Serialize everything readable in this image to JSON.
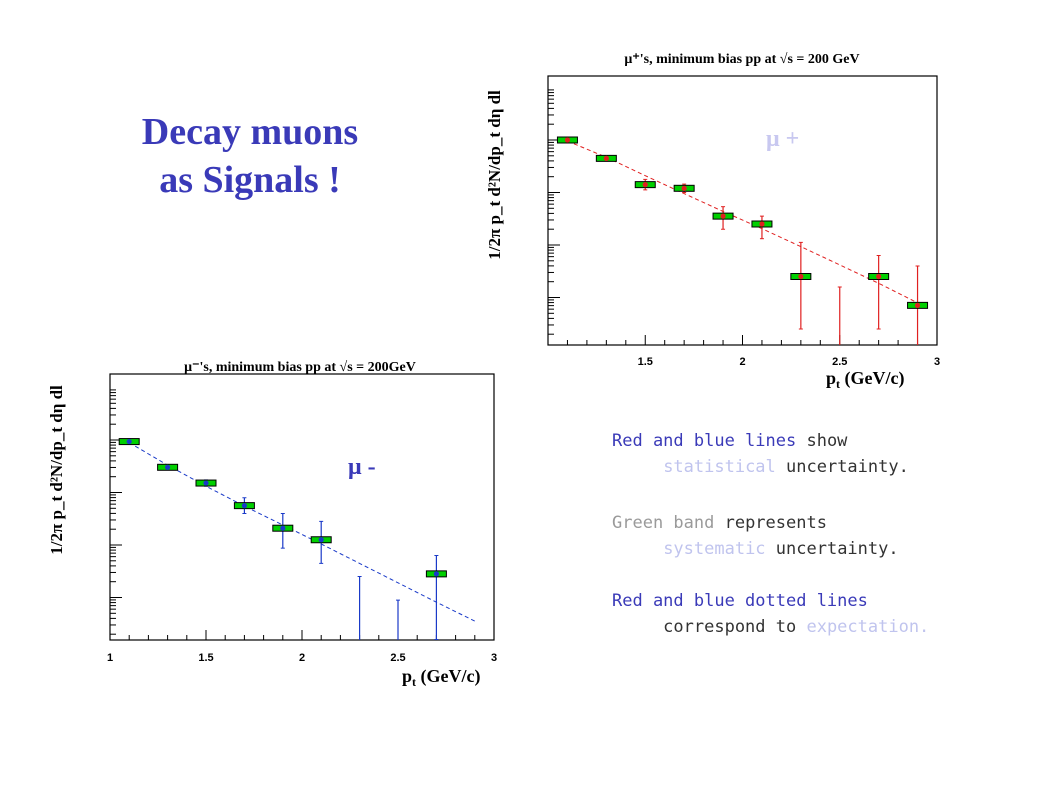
{
  "slide": {
    "title_line1": "Decay muons",
    "title_line2": "as Signals !"
  },
  "notes": [
    {
      "parts": [
        {
          "t": "Red and blue lines",
          "c": "#3a3ab8"
        },
        {
          "t": " show",
          "c": "#333333"
        }
      ]
    },
    {
      "parts": [
        {
          "t": "     ",
          "c": "#333333"
        },
        {
          "t": "statistical",
          "c": "#c0c4ee"
        },
        {
          "t": " uncertainty.",
          "c": "#333333"
        }
      ]
    },
    {
      "parts": [
        {
          "t": "Green band",
          "c": "#9a9a9a"
        },
        {
          "t": " represents",
          "c": "#333333"
        }
      ]
    },
    {
      "parts": [
        {
          "t": "     ",
          "c": "#333333"
        },
        {
          "t": "systematic",
          "c": "#c0c4ee"
        },
        {
          "t": " uncertainty.",
          "c": "#333333"
        }
      ]
    },
    {
      "parts": [
        {
          "t": "Red and blue dotted lines",
          "c": "#3a3ab8"
        }
      ]
    },
    {
      "parts": [
        {
          "t": "     correspond to ",
          "c": "#333333"
        },
        {
          "t": "expectation.",
          "c": "#c0c4ee"
        }
      ]
    }
  ],
  "chart_data": [
    {
      "type": "scatter",
      "title": "μ⁺'s, minimum bias pp at √s = 200 GeV",
      "xlabel": "p",
      "xlabel_sub": "t",
      "xlabel_unit": " (GeV/c)",
      "ylabel": "1/2π p_t d²N/dp_t dη dl",
      "xlim": [
        1.0,
        3.0
      ],
      "x_ticks": [
        "1.5",
        "2",
        "2.5",
        "3"
      ],
      "x_tick_values": [
        1.5,
        2.0,
        2.5,
        3.0
      ],
      "y_log_scale": true,
      "y_decades": [
        0,
        1,
        2,
        3,
        4,
        5
      ],
      "annotation": "μ +",
      "annotation_color": "#c8c8f0",
      "point_color": "#e02020",
      "band_color": "#00d000",
      "expectation_color": "#e02020",
      "points": [
        {
          "x": 1.1,
          "y": 0.0,
          "el": 0.02,
          "eh": 0.02
        },
        {
          "x": 1.3,
          "y": 0.35,
          "el": 0.03,
          "eh": 0.03
        },
        {
          "x": 1.5,
          "y": 0.85,
          "el": 0.1,
          "eh": 0.1
        },
        {
          "x": 1.7,
          "y": 0.92,
          "el": 0.08,
          "eh": 0.08
        },
        {
          "x": 1.9,
          "y": 1.45,
          "el": 0.25,
          "eh": 0.18
        },
        {
          "x": 2.1,
          "y": 1.6,
          "el": 0.28,
          "eh": 0.15
        },
        {
          "x": 2.3,
          "y": 2.6,
          "el": 1.0,
          "eh": 0.65
        },
        {
          "x": 2.7,
          "y": 2.6,
          "el": 1.0,
          "eh": 0.4
        },
        {
          "x": 2.9,
          "y": 3.15,
          "el": 1.0,
          "eh": 0.75
        }
      ],
      "limits": [
        {
          "x": 2.5,
          "y": 2.8
        }
      ],
      "expectation": {
        "x": [
          1.1,
          1.3,
          1.5,
          1.7,
          1.9,
          2.1,
          2.3,
          2.5,
          2.7,
          2.9
        ],
        "y": [
          0.02,
          0.33,
          0.68,
          1.02,
          1.36,
          1.69,
          2.03,
          2.38,
          2.73,
          3.1
        ]
      }
    },
    {
      "type": "scatter",
      "title": "μ⁻'s, minimum bias pp at √s = 200GeV",
      "xlabel": "p",
      "xlabel_sub": "t",
      "xlabel_unit": " (GeV/c)",
      "ylabel": "1/2π p_t d²N/dp_t dη dl",
      "xlim": [
        1.0,
        3.0
      ],
      "x_ticks": [
        "1",
        "1.5",
        "2",
        "2.5",
        "3"
      ],
      "x_tick_values": [
        1.0,
        1.5,
        2.0,
        2.5,
        3.0
      ],
      "y_log_scale": true,
      "y_decades": [
        0,
        1,
        2,
        3,
        4
      ],
      "annotation": "μ -",
      "annotation_color": "#3a3ab8",
      "point_color": "#1a3ac8",
      "band_color": "#00d000",
      "expectation_color": "#1a3ac8",
      "points": [
        {
          "x": 1.1,
          "y": 0.03,
          "el": 0.02,
          "eh": 0.02
        },
        {
          "x": 1.3,
          "y": 0.52,
          "el": 0.03,
          "eh": 0.03
        },
        {
          "x": 1.5,
          "y": 0.82,
          "el": 0.06,
          "eh": 0.06
        },
        {
          "x": 1.7,
          "y": 1.25,
          "el": 0.15,
          "eh": 0.15
        },
        {
          "x": 1.9,
          "y": 1.68,
          "el": 0.38,
          "eh": 0.28
        },
        {
          "x": 2.1,
          "y": 1.9,
          "el": 0.45,
          "eh": 0.35
        },
        {
          "x": 2.7,
          "y": 2.55,
          "el": 1.25,
          "eh": 0.35
        }
      ],
      "limits": [
        {
          "x": 2.3,
          "y": 2.6
        },
        {
          "x": 2.5,
          "y": 3.05
        }
      ],
      "expectation": {
        "x": [
          1.1,
          1.3,
          1.5,
          1.7,
          1.9,
          2.1,
          2.3,
          2.5,
          2.7,
          2.9
        ],
        "y": [
          0.05,
          0.48,
          0.88,
          1.26,
          1.62,
          1.98,
          2.35,
          2.72,
          3.09,
          3.45
        ]
      }
    }
  ]
}
